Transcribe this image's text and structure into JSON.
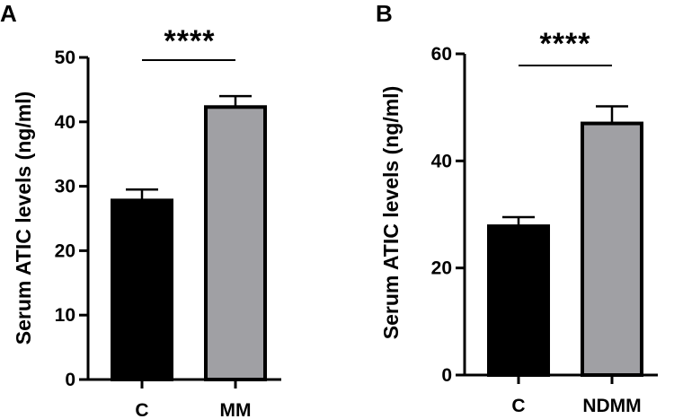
{
  "chart_data": [
    {
      "panel": "A",
      "type": "bar",
      "categories": [
        "C",
        "MM"
      ],
      "values": [
        27.8,
        42.3
      ],
      "error": [
        1.7,
        1.7
      ],
      "ylabel": "Serum ATIC levels (ng/ml)",
      "ylim": [
        0,
        50
      ],
      "yticks": [
        "0",
        "10",
        "20",
        "30",
        "40",
        "50"
      ],
      "significance": "****",
      "bar_colors": [
        "#000000",
        "#a0a0a4"
      ]
    },
    {
      "panel": "B",
      "type": "bar",
      "categories": [
        "C",
        "NDMM"
      ],
      "values": [
        27.8,
        47.0
      ],
      "error": [
        1.7,
        3.2
      ],
      "ylabel": "Serum ATIC levels (ng/ml)",
      "ylim": [
        0,
        60
      ],
      "yticks": [
        "0",
        "20",
        "40",
        "60"
      ],
      "significance": "****",
      "bar_colors": [
        "#000000",
        "#a0a0a4"
      ]
    }
  ]
}
